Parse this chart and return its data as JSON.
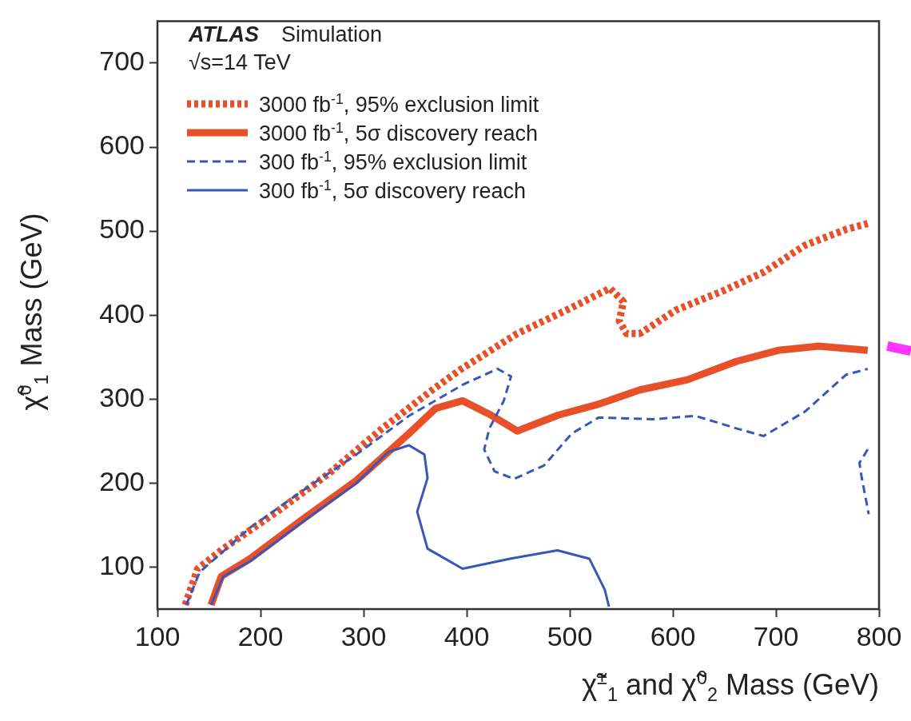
{
  "chart_data": {
    "type": "line",
    "xlabel": "χ̃$^{±}$$_{1}$ and χ̃$^{0}$$_{2}$ Mass (GeV)",
    "ylabel": "χ̃$^{0}$$_{1}$ Mass (GeV)",
    "annotations": [
      "ATLAS",
      "Simulation",
      "√s=14 TeV"
    ],
    "xlim": [
      100,
      800
    ],
    "ylim": [
      50,
      750
    ],
    "xticks": [
      100,
      200,
      300,
      400,
      500,
      600,
      700,
      800
    ],
    "yticks": [
      100,
      200,
      300,
      400,
      500,
      600,
      700
    ],
    "grid": false,
    "legend": "top left",
    "marker": "none",
    "series": [
      {
        "name": "3000 fb$^{-1}$, 95% exclusion limit",
        "color": "#e8502a",
        "line_style": "dotted",
        "x": [
          127,
          139,
          164,
          216,
          267,
          318,
          370,
          395,
          449,
          502,
          539,
          552,
          548,
          555,
          568,
          603,
          649,
          688,
          728,
          768,
          789
        ],
        "values": [
          55,
          98,
          122,
          166,
          212,
          265,
          314,
          336,
          378,
          409,
          432,
          416,
          393,
          378,
          378,
          406,
          429,
          451,
          483,
          502,
          509
        ]
      },
      {
        "name": "3000 fb$^{-1}$, 5σ discovery reach",
        "color": "#e8502a",
        "line_style": "solid",
        "x": [
          152,
          162,
          190,
          241,
          293,
          344,
          370,
          396,
          422,
          449,
          489,
          528,
          568,
          614,
          662,
          702,
          741,
          789
        ],
        "values": [
          55,
          89,
          110,
          157,
          203,
          259,
          289,
          298,
          282,
          262,
          281,
          294,
          311,
          323,
          345,
          358,
          363,
          358
        ]
      },
      {
        "name": "300 fb$^{-1}$, 95% exclusion limit",
        "color": "#3a56b8",
        "line_style": "dashed",
        "x": [
          128,
          141,
          190,
          241,
          293,
          344,
          396,
          430,
          443,
          436,
          422,
          417,
          427,
          446,
          475,
          502,
          528,
          581,
          622,
          662,
          688,
          728,
          768,
          789
        ],
        "values": [
          55,
          94,
          147,
          191,
          234,
          280,
          317,
          336,
          327,
          298,
          265,
          240,
          214,
          205,
          221,
          259,
          278,
          276,
          280,
          265,
          256,
          285,
          329,
          336
        ]
      },
      {
        "color": "#3a56b8",
        "line_style": "dashed",
        "x": [
          789,
          781,
          783,
          790
        ],
        "values": [
          240,
          224,
          208,
          163
        ]
      },
      {
        "name": "300 fb$^{-1}$, 5σ discovery reach",
        "color": "#3a56b8",
        "line_style": "solid",
        "x": [
          152,
          164,
          190,
          241,
          293,
          324,
          344,
          359,
          362,
          352,
          362,
          396,
          442,
          488,
          519,
          534,
          538
        ],
        "values": [
          55,
          89,
          107,
          154,
          200,
          237,
          245,
          234,
          206,
          166,
          122,
          98,
          110,
          120,
          110,
          73,
          53
        ]
      }
    ]
  }
}
